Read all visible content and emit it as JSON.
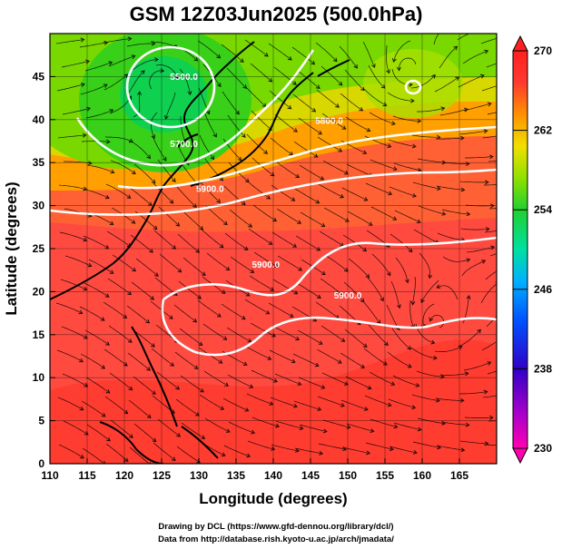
{
  "chart_data": {
    "type": "heatmap",
    "title": "GSM 12Z03Jun2025 (500.0hPa)",
    "xlabel": "Longitude (degrees)",
    "ylabel": "Latitude  (degrees)",
    "xlim": [
      110,
      170
    ],
    "ylim": [
      0,
      50
    ],
    "xticks": [
      110,
      115,
      120,
      125,
      130,
      135,
      140,
      145,
      150,
      155,
      160,
      165
    ],
    "yticks": [
      0,
      5,
      10,
      15,
      20,
      25,
      30,
      35,
      40,
      45
    ],
    "grid": true,
    "field": "temperature (K)",
    "colorbar": {
      "min": 230,
      "max": 270,
      "ticks": [
        230,
        238,
        246,
        254,
        262,
        270
      ]
    },
    "contour_labels": [
      {
        "text": "5500.0",
        "lon": 128.0,
        "lat": 44.6
      },
      {
        "text": "5700.0",
        "lon": 128.0,
        "lat": 36.8
      },
      {
        "text": "5800.0",
        "lon": 147.5,
        "lat": 39.5
      },
      {
        "text": "5900.0",
        "lon": 131.5,
        "lat": 31.6
      },
      {
        "text": "5900.0",
        "lon": 139.0,
        "lat": 22.8
      },
      {
        "text": "5900.0",
        "lon": 150.0,
        "lat": 19.2
      }
    ],
    "highs_lows": [
      {
        "kind": "cyclone",
        "lon": 125.0,
        "lat": 45.0
      },
      {
        "kind": "anticyclone",
        "lon": 158.0,
        "lat": 45.5
      },
      {
        "kind": "anticyclone",
        "lon": 162.0,
        "lat": 16.0
      }
    ]
  },
  "credits": {
    "line1": "Drawing by DCL (https://www.gfd-dennou.org/library/dcl/)",
    "line2": "Data from http://database.rish.kyoto-u.ac.jp/arch/jmadata/"
  },
  "colors": {
    "background": "#ffffff",
    "contour": "#ffffff",
    "coast": "#000000",
    "streamline": "#000000"
  }
}
